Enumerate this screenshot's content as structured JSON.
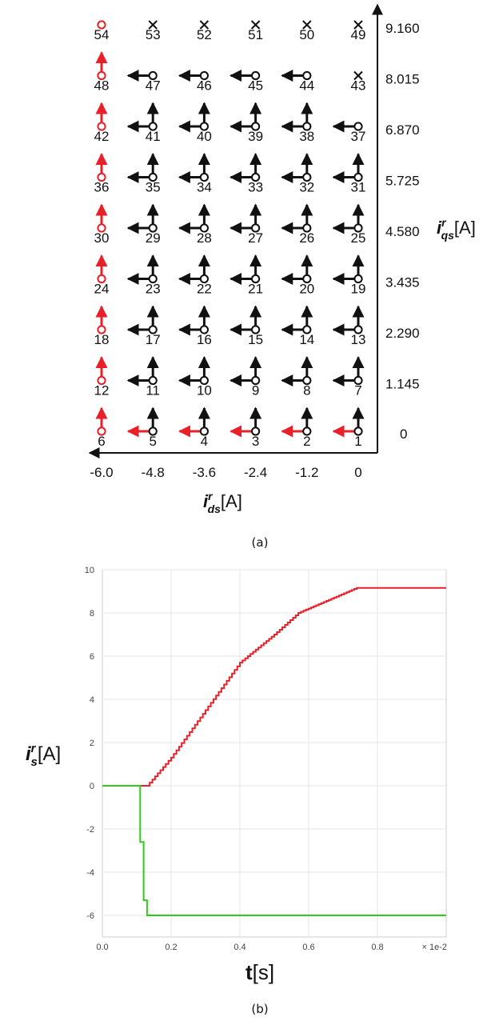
{
  "figure": {
    "caption_a": "(a)",
    "caption_b": "(b)"
  },
  "colors": {
    "red": "#e8202a",
    "green": "#2ecc1a",
    "black": "#111111",
    "grid": "#e6e6e6"
  },
  "chart_data": [
    {
      "type": "scatter",
      "xlabel": "i^r_ds[A]",
      "ylabel": "i^r_qs[A]",
      "x_ticks": [
        "-6.0",
        "-4.8",
        "-3.6",
        "-2.4",
        "-1.2",
        "0"
      ],
      "y_ticks": [
        "0",
        "1.145",
        "2.290",
        "3.435",
        "4.580",
        "5.725",
        "6.870",
        "8.015",
        "9.160"
      ],
      "grid": {
        "columns": [
          -6.0,
          -4.8,
          -3.6,
          -2.4,
          -1.2,
          0
        ],
        "rows": [
          0,
          1.145,
          2.29,
          3.435,
          4.58,
          5.725,
          6.87,
          8.015,
          9.16
        ]
      },
      "legend_note": "numbered state nodes; arrows show allowed moves (up = +i_qs, left = -i_ds); red = boundary/optimal path; x = forbidden state",
      "nodes": [
        {
          "id": 1,
          "x": 0,
          "y": 0,
          "type": "node",
          "up": "black",
          "left": "red"
        },
        {
          "id": 2,
          "x": -1.2,
          "y": 0,
          "type": "node",
          "up": "black",
          "left": "red"
        },
        {
          "id": 3,
          "x": -2.4,
          "y": 0,
          "type": "node",
          "up": "black",
          "left": "red"
        },
        {
          "id": 4,
          "x": -3.6,
          "y": 0,
          "type": "node",
          "up": "black",
          "left": "red"
        },
        {
          "id": 5,
          "x": -4.8,
          "y": 0,
          "type": "node",
          "up": "black",
          "left": "red"
        },
        {
          "id": 6,
          "x": -6.0,
          "y": 0,
          "type": "red-node",
          "up": "red",
          "left": null
        },
        {
          "id": 7,
          "x": 0,
          "y": 1.145,
          "type": "node",
          "up": "black",
          "left": "black"
        },
        {
          "id": 8,
          "x": -1.2,
          "y": 1.145,
          "type": "node",
          "up": "black",
          "left": "black"
        },
        {
          "id": 9,
          "x": -2.4,
          "y": 1.145,
          "type": "node",
          "up": "black",
          "left": "black"
        },
        {
          "id": 10,
          "x": -3.6,
          "y": 1.145,
          "type": "node",
          "up": "black",
          "left": "black"
        },
        {
          "id": 11,
          "x": -4.8,
          "y": 1.145,
          "type": "node",
          "up": "black",
          "left": "black"
        },
        {
          "id": 12,
          "x": -6.0,
          "y": 1.145,
          "type": "red-node",
          "up": "red",
          "left": null
        },
        {
          "id": 13,
          "x": 0,
          "y": 2.29,
          "type": "node",
          "up": "black",
          "left": "black"
        },
        {
          "id": 14,
          "x": -1.2,
          "y": 2.29,
          "type": "node",
          "up": "black",
          "left": "black"
        },
        {
          "id": 15,
          "x": -2.4,
          "y": 2.29,
          "type": "node",
          "up": "black",
          "left": "black"
        },
        {
          "id": 16,
          "x": -3.6,
          "y": 2.29,
          "type": "node",
          "up": "black",
          "left": "black"
        },
        {
          "id": 17,
          "x": -4.8,
          "y": 2.29,
          "type": "node",
          "up": "black",
          "left": "black"
        },
        {
          "id": 18,
          "x": -6.0,
          "y": 2.29,
          "type": "red-node",
          "up": "red",
          "left": null
        },
        {
          "id": 19,
          "x": 0,
          "y": 3.435,
          "type": "node",
          "up": "black",
          "left": "black"
        },
        {
          "id": 20,
          "x": -1.2,
          "y": 3.435,
          "type": "node",
          "up": "black",
          "left": "black"
        },
        {
          "id": 21,
          "x": -2.4,
          "y": 3.435,
          "type": "node",
          "up": "black",
          "left": "black"
        },
        {
          "id": 22,
          "x": -3.6,
          "y": 3.435,
          "type": "node",
          "up": "black",
          "left": "black"
        },
        {
          "id": 23,
          "x": -4.8,
          "y": 3.435,
          "type": "node",
          "up": "black",
          "left": "black"
        },
        {
          "id": 24,
          "x": -6.0,
          "y": 3.435,
          "type": "red-node",
          "up": "red",
          "left": null
        },
        {
          "id": 25,
          "x": 0,
          "y": 4.58,
          "type": "node",
          "up": "black",
          "left": "black"
        },
        {
          "id": 26,
          "x": -1.2,
          "y": 4.58,
          "type": "node",
          "up": "black",
          "left": "black"
        },
        {
          "id": 27,
          "x": -2.4,
          "y": 4.58,
          "type": "node",
          "up": "black",
          "left": "black"
        },
        {
          "id": 28,
          "x": -3.6,
          "y": 4.58,
          "type": "node",
          "up": "black",
          "left": "black"
        },
        {
          "id": 29,
          "x": -4.8,
          "y": 4.58,
          "type": "node",
          "up": "black",
          "left": "black"
        },
        {
          "id": 30,
          "x": -6.0,
          "y": 4.58,
          "type": "red-node",
          "up": "red",
          "left": null
        },
        {
          "id": 31,
          "x": 0,
          "y": 5.725,
          "type": "node",
          "up": "black",
          "left": "black"
        },
        {
          "id": 32,
          "x": -1.2,
          "y": 5.725,
          "type": "node",
          "up": "black",
          "left": "black"
        },
        {
          "id": 33,
          "x": -2.4,
          "y": 5.725,
          "type": "node",
          "up": "black",
          "left": "black"
        },
        {
          "id": 34,
          "x": -3.6,
          "y": 5.725,
          "type": "node",
          "up": "black",
          "left": "black"
        },
        {
          "id": 35,
          "x": -4.8,
          "y": 5.725,
          "type": "node",
          "up": "black",
          "left": "black"
        },
        {
          "id": 36,
          "x": -6.0,
          "y": 5.725,
          "type": "red-node",
          "up": "red",
          "left": null
        },
        {
          "id": 37,
          "x": 0,
          "y": 6.87,
          "type": "node",
          "up": null,
          "left": "black"
        },
        {
          "id": 38,
          "x": -1.2,
          "y": 6.87,
          "type": "node",
          "up": "black",
          "left": "black"
        },
        {
          "id": 39,
          "x": -2.4,
          "y": 6.87,
          "type": "node",
          "up": "black",
          "left": "black"
        },
        {
          "id": 40,
          "x": -3.6,
          "y": 6.87,
          "type": "node",
          "up": "black",
          "left": "black"
        },
        {
          "id": 41,
          "x": -4.8,
          "y": 6.87,
          "type": "node",
          "up": "black",
          "left": "black"
        },
        {
          "id": 42,
          "x": -6.0,
          "y": 6.87,
          "type": "red-node",
          "up": "red",
          "left": null
        },
        {
          "id": 43,
          "x": 0,
          "y": 8.015,
          "type": "x",
          "up": null,
          "left": null
        },
        {
          "id": 44,
          "x": -1.2,
          "y": 8.015,
          "type": "node",
          "up": null,
          "left": "black"
        },
        {
          "id": 45,
          "x": -2.4,
          "y": 8.015,
          "type": "node",
          "up": null,
          "left": "black"
        },
        {
          "id": 46,
          "x": -3.6,
          "y": 8.015,
          "type": "node",
          "up": null,
          "left": "black"
        },
        {
          "id": 47,
          "x": -4.8,
          "y": 8.015,
          "type": "node",
          "up": null,
          "left": "black"
        },
        {
          "id": 48,
          "x": -6.0,
          "y": 8.015,
          "type": "red-node",
          "up": "red",
          "left": null
        },
        {
          "id": 49,
          "x": 0,
          "y": 9.16,
          "type": "x",
          "up": null,
          "left": null
        },
        {
          "id": 50,
          "x": -1.2,
          "y": 9.16,
          "type": "x",
          "up": null,
          "left": null
        },
        {
          "id": 51,
          "x": -2.4,
          "y": 9.16,
          "type": "x",
          "up": null,
          "left": null
        },
        {
          "id": 52,
          "x": -3.6,
          "y": 9.16,
          "type": "x",
          "up": null,
          "left": null
        },
        {
          "id": 53,
          "x": -4.8,
          "y": 9.16,
          "type": "x",
          "up": null,
          "left": null
        },
        {
          "id": 54,
          "x": -6.0,
          "y": 9.16,
          "type": "red-node",
          "up": null,
          "left": null
        }
      ]
    },
    {
      "type": "line",
      "xlabel": "t[s]",
      "ylabel": "i^r_s[A]",
      "x_scale_note": "× 1e-2",
      "xlim": [
        0,
        1.0
      ],
      "ylim": [
        -7,
        10
      ],
      "x_ticks": [
        "0.0",
        "0.2",
        "0.4",
        "0.6",
        "0.8"
      ],
      "x_tick_values": [
        0,
        0.2,
        0.4,
        0.6,
        0.8
      ],
      "y_ticks": [
        "-6",
        "-4",
        "-2",
        "0",
        "2",
        "4",
        "6",
        "8",
        "10"
      ],
      "y_tick_values": [
        -6,
        -4,
        -2,
        0,
        2,
        4,
        6,
        8,
        10
      ],
      "grid": true,
      "series": [
        {
          "color": "#e8202a",
          "shape": "staircase",
          "x": [
            0,
            0.13,
            0.2,
            0.3,
            0.4,
            0.5,
            0.57,
            0.74,
            1.0
          ],
          "y": [
            0,
            0,
            1.3,
            3.5,
            5.7,
            7.0,
            8.0,
            9.16,
            9.16
          ]
        },
        {
          "color": "#2ecc1a",
          "shape": "step",
          "x": [
            0,
            0.11,
            0.11,
            0.12,
            0.12,
            0.13,
            0.13,
            1.0
          ],
          "y": [
            0,
            0,
            -2.6,
            -2.6,
            -5.3,
            -5.3,
            -6.0,
            -6.0
          ]
        }
      ]
    }
  ]
}
